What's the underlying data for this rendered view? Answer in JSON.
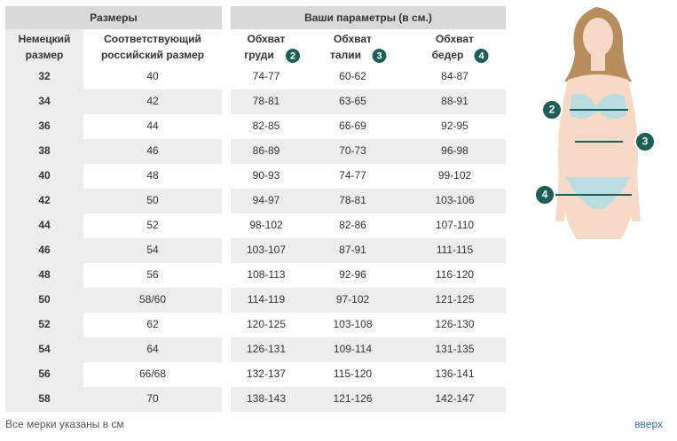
{
  "sizes_table": {
    "title": "Размеры",
    "columns": [
      [
        "Немецкий",
        "размер"
      ],
      [
        "Соответствующий",
        "российский размер"
      ]
    ]
  },
  "params_table": {
    "title": "Ваши параметры (в см.)",
    "columns": [
      {
        "label": [
          "Обхват",
          "груди"
        ],
        "badge": "2"
      },
      {
        "label": [
          "Обхват",
          "талии"
        ],
        "badge": "3"
      },
      {
        "label": [
          "Обхват",
          "бедер"
        ],
        "badge": "4"
      }
    ]
  },
  "rows": [
    [
      "32",
      "40",
      "74-77",
      "60-62",
      "84-87"
    ],
    [
      "34",
      "42",
      "78-81",
      "63-65",
      "88-91"
    ],
    [
      "36",
      "44",
      "82-85",
      "66-69",
      "92-95"
    ],
    [
      "38",
      "46",
      "86-89",
      "70-73",
      "96-98"
    ],
    [
      "40",
      "48",
      "90-93",
      "74-77",
      "99-102"
    ],
    [
      "42",
      "50",
      "94-97",
      "78-81",
      "103-106"
    ],
    [
      "44",
      "52",
      "98-102",
      "82-86",
      "107-110"
    ],
    [
      "46",
      "54",
      "103-107",
      "87-91",
      "111-115"
    ],
    [
      "48",
      "56",
      "108-113",
      "92-96",
      "116-120"
    ],
    [
      "50",
      "58/60",
      "114-119",
      "97-102",
      "121-125"
    ],
    [
      "52",
      "62",
      "120-125",
      "103-108",
      "126-130"
    ],
    [
      "54",
      "64",
      "126-131",
      "109-114",
      "131-135"
    ],
    [
      "56",
      "66/68",
      "132-137",
      "115-120",
      "136-141"
    ],
    [
      "58",
      "70",
      "138-143",
      "121-126",
      "142-147"
    ]
  ],
  "figure_markers": [
    "2",
    "3",
    "4"
  ],
  "footer": {
    "note": "Все мерки указаны в см",
    "top_link": "вверх"
  }
}
